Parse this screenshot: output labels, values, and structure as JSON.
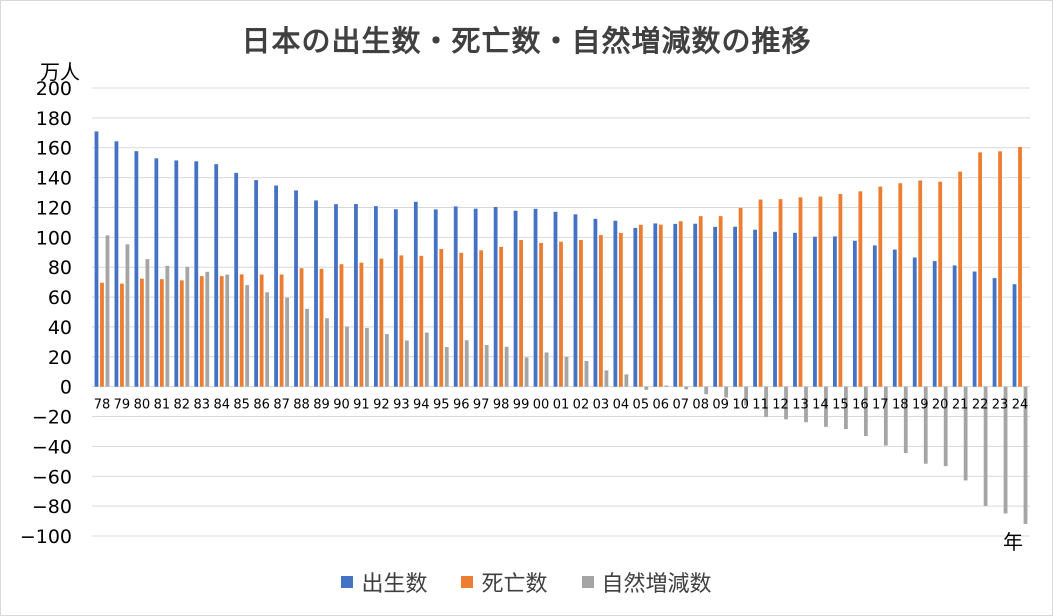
{
  "chart_data": {
    "type": "bar",
    "title": "日本の出生数・死亡数・自然増減数の推移",
    "ylabel": "万人",
    "xlabel": "年",
    "ylim": [
      -100,
      200
    ],
    "yticks": [
      200,
      180,
      160,
      140,
      120,
      100,
      80,
      60,
      40,
      20,
      0,
      -20,
      -40,
      -60,
      -80,
      -100
    ],
    "yticks_labels": [
      "200",
      "180",
      "160",
      "140",
      "120",
      "100",
      "80",
      "60",
      "40",
      "20",
      "0",
      "−20",
      "−40",
      "−60",
      "−80",
      "−100"
    ],
    "grid": true,
    "legend_position": "bottom",
    "categories": [
      "78",
      "79",
      "80",
      "81",
      "82",
      "83",
      "84",
      "85",
      "86",
      "87",
      "88",
      "89",
      "90",
      "91",
      "92",
      "93",
      "94",
      "95",
      "96",
      "97",
      "98",
      "99",
      "00",
      "01",
      "02",
      "03",
      "04",
      "05",
      "06",
      "07",
      "08",
      "09",
      "10",
      "11",
      "12",
      "13",
      "14",
      "15",
      "16",
      "17",
      "18",
      "19",
      "20",
      "21",
      "22",
      "23",
      "24"
    ],
    "series": [
      {
        "name": "出生数",
        "color": "#4472c4",
        "values": [
          170.9,
          164.3,
          157.7,
          152.9,
          151.5,
          150.9,
          149.0,
          143.2,
          138.3,
          134.7,
          131.4,
          124.7,
          122.2,
          122.3,
          120.9,
          118.8,
          123.8,
          118.7,
          120.7,
          119.2,
          120.3,
          117.8,
          119.1,
          117.1,
          115.4,
          112.4,
          111.1,
          106.3,
          109.3,
          109.0,
          109.1,
          107.0,
          107.1,
          105.1,
          103.7,
          103.0,
          100.4,
          100.6,
          97.7,
          94.6,
          91.8,
          86.5,
          84.1,
          81.2,
          77.1,
          72.7,
          68.6
        ]
      },
      {
        "name": "死亡数",
        "color": "#ed7d31",
        "values": [
          69.6,
          69.0,
          72.3,
          72.0,
          71.2,
          74.0,
          74.0,
          75.2,
          75.1,
          75.1,
          79.3,
          78.9,
          82.0,
          83.0,
          85.7,
          87.9,
          87.6,
          92.2,
          89.6,
          91.3,
          93.6,
          98.2,
          96.2,
          97.1,
          98.2,
          101.5,
          102.9,
          108.4,
          108.5,
          110.8,
          114.2,
          114.2,
          119.7,
          125.3,
          125.6,
          126.8,
          127.3,
          129.0,
          130.8,
          134.0,
          136.2,
          138.1,
          137.3,
          144.0,
          156.9,
          157.6,
          160.5
        ]
      },
      {
        "name": "自然増減数",
        "color": "#a5a5a5",
        "values": [
          101.3,
          95.3,
          85.4,
          80.9,
          80.3,
          76.9,
          75.0,
          68.0,
          63.2,
          59.6,
          52.1,
          45.8,
          40.2,
          39.3,
          35.2,
          30.9,
          36.2,
          26.5,
          31.1,
          27.9,
          26.7,
          19.6,
          22.9,
          20.0,
          17.2,
          10.9,
          8.2,
          -2.1,
          0.8,
          -1.8,
          -5.1,
          -7.2,
          -12.6,
          -20.2,
          -21.9,
          -23.8,
          -26.9,
          -28.4,
          -33.1,
          -39.4,
          -44.4,
          -51.6,
          -53.2,
          -62.8,
          -79.8,
          -84.9,
          -91.9
        ]
      }
    ]
  }
}
